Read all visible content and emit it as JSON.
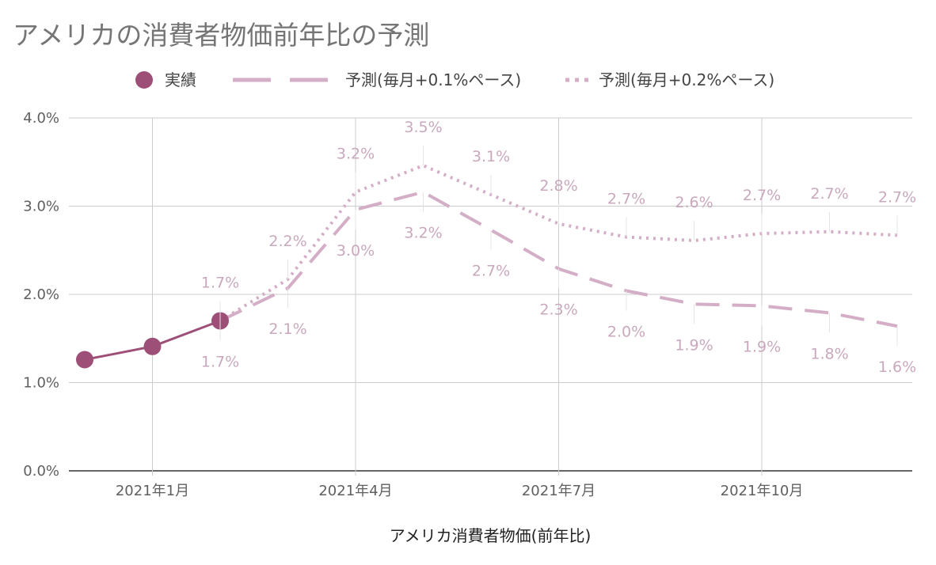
{
  "chart_data": {
    "type": "line",
    "title": "アメリカの消費者物価前年比の予測",
    "xlabel": "アメリカ消費者物価(前年比)",
    "ylabel": "",
    "ylim": [
      0,
      4
    ],
    "y_ticks": [
      "0.0%",
      "1.0%",
      "2.0%",
      "3.0%",
      "4.0%"
    ],
    "x_ticks": [
      {
        "month": "2021-01",
        "label": "2021年1月"
      },
      {
        "month": "2021-04",
        "label": "2021年4月"
      },
      {
        "month": "2021-07",
        "label": "2021年7月"
      },
      {
        "month": "2021-10",
        "label": "2021年10月"
      }
    ],
    "x": [
      "2020-12",
      "2021-01",
      "2021-02",
      "2021-03",
      "2021-04",
      "2021-05",
      "2021-06",
      "2021-07",
      "2021-08",
      "2021-09",
      "2021-10",
      "2021-11",
      "2021-12"
    ],
    "grid": true,
    "legend_position": "top",
    "series": [
      {
        "name": "実績",
        "style": "solid-markers",
        "color": "#9e4f78",
        "values": [
          1.26,
          1.41,
          1.7,
          null,
          null,
          null,
          null,
          null,
          null,
          null,
          null,
          null,
          null
        ],
        "labels": []
      },
      {
        "name": "予測(毎月+0.1%ペース)",
        "style": "dashed",
        "color": "#d3aec6",
        "values": [
          null,
          null,
          1.7,
          2.07,
          2.96,
          3.16,
          2.73,
          2.29,
          2.04,
          1.89,
          1.87,
          1.79,
          1.64
        ],
        "labels": [
          "",
          "",
          "1.7%",
          "2.1%",
          "3.0%",
          "3.2%",
          "2.7%",
          "2.3%",
          "2.0%",
          "1.9%",
          "1.9%",
          "1.8%",
          "1.6%"
        ]
      },
      {
        "name": "予測(毎月+0.2%ペース)",
        "style": "dotted",
        "color": "#d3aec6",
        "values": [
          null,
          null,
          1.7,
          2.17,
          3.16,
          3.46,
          3.13,
          2.8,
          2.65,
          2.61,
          2.69,
          2.71,
          2.67
        ],
        "labels": [
          "",
          "",
          "1.7%",
          "2.2%",
          "3.2%",
          "3.5%",
          "3.1%",
          "2.8%",
          "2.7%",
          "2.6%",
          "2.7%",
          "2.7%",
          "2.7%"
        ]
      }
    ]
  }
}
